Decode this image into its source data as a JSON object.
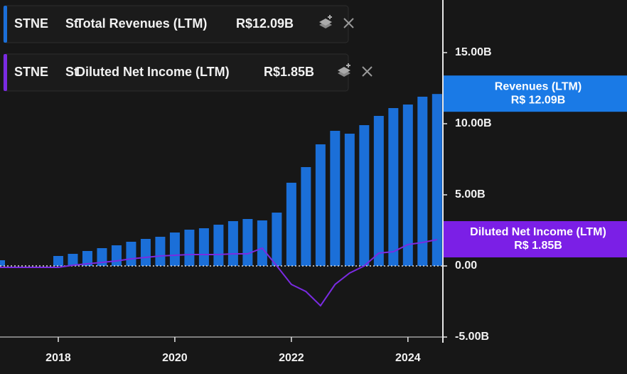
{
  "chart_data": {
    "type": "bar",
    "legend": [
      {
        "ticker": "STNE",
        "company": "St",
        "name": "Total Revenues (LTM)",
        "value_label": "R$12.09B"
      },
      {
        "ticker": "STNE",
        "company": "St",
        "name": "Diluted Net Income (LTM)",
        "value_label": "R$1.85B"
      }
    ],
    "x": [
      2017.0,
      2018.0,
      2018.25,
      2018.5,
      2018.75,
      2019.0,
      2019.25,
      2019.5,
      2019.75,
      2020.0,
      2020.25,
      2020.5,
      2020.75,
      2021.0,
      2021.25,
      2021.5,
      2021.75,
      2022.0,
      2022.25,
      2022.5,
      2022.75,
      2023.0,
      2023.25,
      2023.5,
      2023.75,
      2024.0,
      2024.25,
      2024.5
    ],
    "series": [
      {
        "name": "Revenues (LTM)",
        "type": "bar",
        "color": "#1b6fd8",
        "tag_color": "#1a7ae6",
        "tag_label": "R$ 12.09B",
        "values": [
          0.4,
          0.7,
          0.85,
          1.05,
          1.25,
          1.45,
          1.7,
          1.9,
          2.05,
          2.35,
          2.55,
          2.65,
          2.9,
          3.15,
          3.3,
          3.2,
          3.75,
          5.85,
          6.95,
          8.55,
          9.5,
          9.3,
          9.9,
          10.55,
          11.1,
          11.35,
          11.9,
          12.09
        ]
      },
      {
        "name": "Diluted Net Income (LTM)",
        "type": "line",
        "color": "#7a2be2",
        "tag_color": "#7b1fe6",
        "tag_label": "R$ 1.85B",
        "values": [
          -0.1,
          -0.1,
          0.05,
          0.15,
          0.25,
          0.35,
          0.5,
          0.6,
          0.7,
          0.75,
          0.8,
          0.8,
          0.8,
          0.85,
          0.85,
          1.25,
          0.0,
          -1.3,
          -1.8,
          -2.8,
          -1.3,
          -0.5,
          0.0,
          0.9,
          1.0,
          1.5,
          1.65,
          1.85
        ]
      }
    ],
    "xlim": [
      2017.0,
      2024.6
    ],
    "xticks": [
      2018,
      2020,
      2022,
      2024
    ],
    "ylim": [
      -5.4,
      18.7
    ],
    "yticks": [
      {
        "value": -5,
        "label": "-5.00B"
      },
      {
        "value": 0,
        "label": "0.00"
      },
      {
        "value": 5,
        "label": "5.00B"
      },
      {
        "value": 10,
        "label": "10.00B"
      },
      {
        "value": 15,
        "label": "15.00B"
      }
    ]
  }
}
